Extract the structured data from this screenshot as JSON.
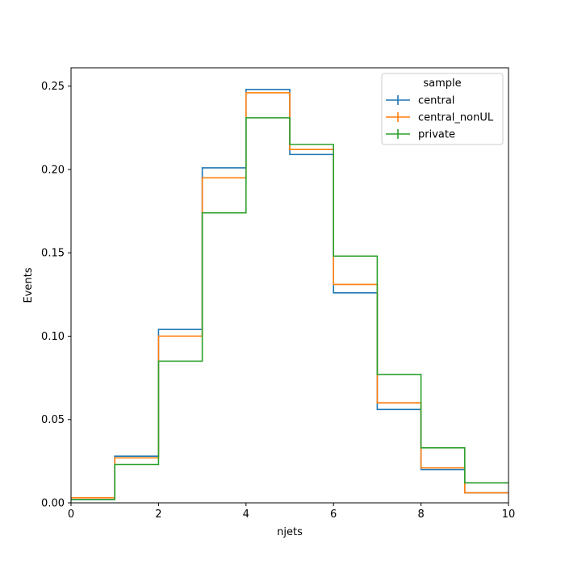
{
  "chart_data": {
    "type": "histogram-step",
    "xlabel": "njets",
    "ylabel": "Events",
    "xlim": [
      0,
      10
    ],
    "ylim": [
      0,
      0.261
    ],
    "x_ticks": [
      0,
      2,
      4,
      6,
      8,
      10
    ],
    "y_ticks": [
      0.0,
      0.05,
      0.1,
      0.15,
      0.2,
      0.25
    ],
    "x_tick_labels": [
      "0",
      "2",
      "4",
      "6",
      "8",
      "10"
    ],
    "y_tick_labels": [
      "0.00",
      "0.05",
      "0.10",
      "0.15",
      "0.20",
      "0.25"
    ],
    "bin_edges": [
      0,
      1,
      2,
      3,
      4,
      5,
      6,
      7,
      8,
      9,
      10
    ],
    "legend": {
      "title": "sample",
      "placement": "top-right"
    },
    "series": [
      {
        "name": "central",
        "color": "#1f77b4",
        "values": [
          0.002,
          0.028,
          0.104,
          0.201,
          0.248,
          0.209,
          0.126,
          0.056,
          0.02,
          0.006
        ]
      },
      {
        "name": "central_nonUL",
        "color": "#ff7f0e",
        "values": [
          0.003,
          0.027,
          0.1,
          0.195,
          0.246,
          0.212,
          0.131,
          0.06,
          0.021,
          0.006
        ]
      },
      {
        "name": "private",
        "color": "#2ca02c",
        "values": [
          0.002,
          0.023,
          0.085,
          0.174,
          0.231,
          0.215,
          0.148,
          0.077,
          0.033,
          0.012
        ]
      }
    ]
  }
}
